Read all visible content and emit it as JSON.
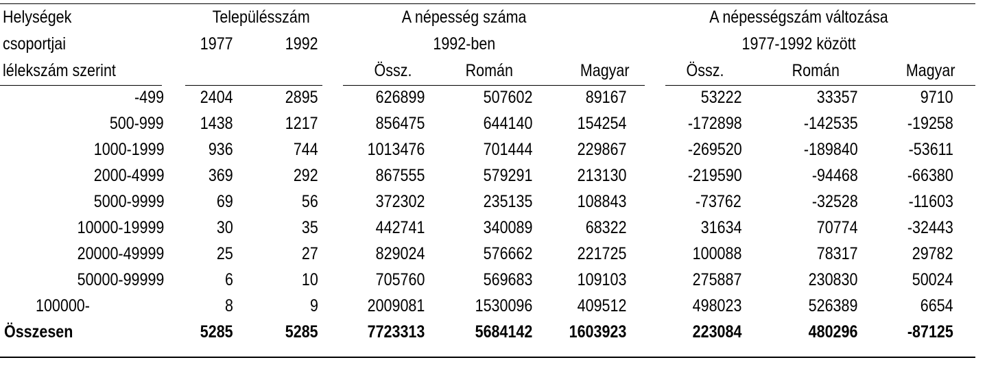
{
  "header": {
    "col1": [
      "Helységek",
      "csoportjai",
      "lélekszám szerint"
    ],
    "settlement_count": "Településszám",
    "year1977": "1977",
    "year1992": "1992",
    "pop1992": "A népesség száma",
    "pop1992_sub": "1992-ben",
    "change": "A népességszám változása",
    "change_sub": "1977-1992 között",
    "ossz": "Össz.",
    "roman": "Román",
    "magyar": "Magyar"
  },
  "rows": [
    [
      "-499",
      "2404",
      "2895",
      "626899",
      "507602",
      "89167",
      "53222",
      "33357",
      "9710"
    ],
    [
      "500-999",
      "1438",
      "1217",
      "856475",
      "644140",
      "154254",
      "-172898",
      "-142535",
      "-19258"
    ],
    [
      "1000-1999",
      "936",
      "744",
      "1013476",
      "701444",
      "229867",
      "-269520",
      "-189840",
      "-53611"
    ],
    [
      "2000-4999",
      "369",
      "292",
      "867555",
      "579291",
      "213130",
      "-219590",
      "-94468",
      "-66380"
    ],
    [
      "5000-9999",
      "69",
      "56",
      "372302",
      "235135",
      "108843",
      "-73762",
      "-32528",
      "-11603"
    ],
    [
      "10000-19999",
      "30",
      "35",
      "442741",
      "340089",
      "68322",
      "31634",
      "70774",
      "-32443"
    ],
    [
      "20000-49999",
      "25",
      "27",
      "829024",
      "576662",
      "221725",
      "100088",
      "78317",
      "29782"
    ],
    [
      "50000-99999",
      "6",
      "10",
      "705760",
      "569683",
      "109103",
      "275887",
      "230830",
      "50024"
    ],
    [
      "100000-",
      "8",
      "9",
      "2009081",
      "1530096",
      "409512",
      "498023",
      "526389",
      "6654"
    ]
  ],
  "total": [
    "Összesen",
    "5285",
    "5285",
    "7723313",
    "5684142",
    "1603923",
    "223084",
    "480296",
    "-87125"
  ]
}
